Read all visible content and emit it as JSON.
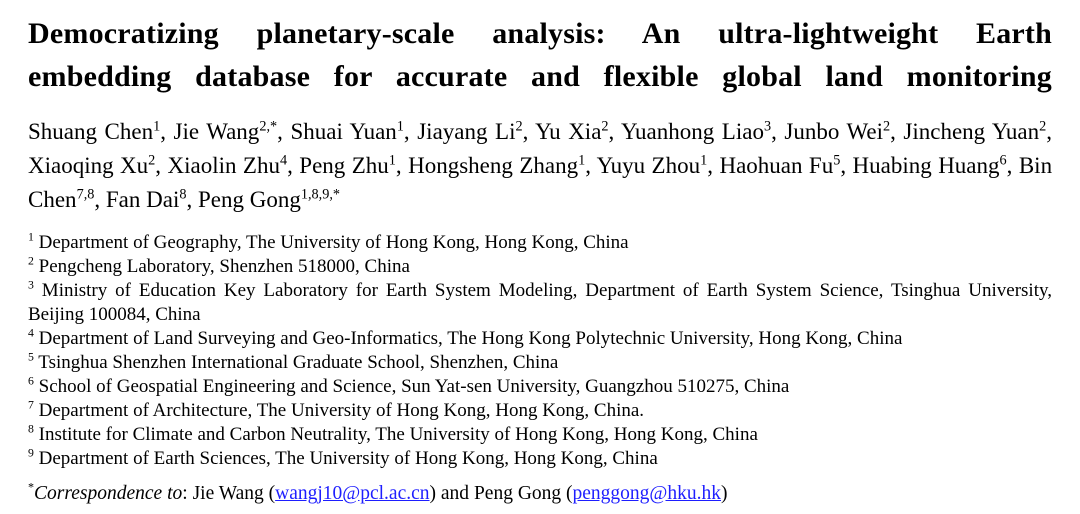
{
  "title": {
    "line1": "Democratizing planetary-scale analysis: An ultra-lightweight Earth",
    "line2": "embedding database for accurate and flexible global land monitoring"
  },
  "authors": [
    {
      "name": "Shuang Chen",
      "sup": "1"
    },
    {
      "name": "Jie Wang",
      "sup": "2,*"
    },
    {
      "name": "Shuai Yuan",
      "sup": "1"
    },
    {
      "name": "Jiayang Li",
      "sup": "2"
    },
    {
      "name": "Yu Xia",
      "sup": "2"
    },
    {
      "name": "Yuanhong Liao",
      "sup": "3"
    },
    {
      "name": "Junbo Wei",
      "sup": "2"
    },
    {
      "name": "Jincheng Yuan",
      "sup": "2"
    },
    {
      "name": "Xiaoqing Xu",
      "sup": "2"
    },
    {
      "name": "Xiaolin Zhu",
      "sup": "4"
    },
    {
      "name": "Peng Zhu",
      "sup": "1"
    },
    {
      "name": "Hongsheng Zhang",
      "sup": "1"
    },
    {
      "name": "Yuyu Zhou",
      "sup": "1"
    },
    {
      "name": "Haohuan Fu",
      "sup": "5"
    },
    {
      "name": "Huabing Huang",
      "sup": "6"
    },
    {
      "name": "Bin Chen",
      "sup": "7,8"
    },
    {
      "name": "Fan Dai",
      "sup": "8"
    },
    {
      "name": "Peng Gong",
      "sup": "1,8,9,*"
    }
  ],
  "affiliations": [
    {
      "sup": "1",
      "text": "Department of Geography, The University of Hong Kong, Hong Kong, China"
    },
    {
      "sup": "2",
      "text": "Pengcheng Laboratory, Shenzhen 518000, China"
    },
    {
      "sup": "3",
      "text": "Ministry of Education Key Laboratory for Earth System Modeling, Department of Earth System Science, Tsinghua University, Beijing 100084, China"
    },
    {
      "sup": "4",
      "text": "Department of Land Surveying and Geo-Informatics, The Hong Kong Polytechnic University, Hong Kong, China"
    },
    {
      "sup": "5",
      "text": "Tsinghua Shenzhen International Graduate School, Shenzhen, China"
    },
    {
      "sup": "6",
      "text": "School of Geospatial Engineering and Science, Sun Yat-sen University, Guangzhou 510275, China"
    },
    {
      "sup": "7",
      "text": "Department of Architecture, The University of Hong Kong, Hong Kong, China."
    },
    {
      "sup": "8",
      "text": "Institute for Climate and Carbon Neutrality, The University of Hong Kong, Hong Kong, China"
    },
    {
      "sup": "9",
      "text": "Department of Earth Sciences, The University of Hong Kong, Hong Kong, China"
    }
  ],
  "correspondence": {
    "marker": "*",
    "label": "Correspondence to",
    "colon": ": ",
    "joiner": " and ",
    "contacts": [
      {
        "name": "Jie Wang",
        "email": "wangj10@pcl.ac.cn"
      },
      {
        "name": "Peng Gong",
        "email": "penggong@hku.hk"
      }
    ]
  },
  "colors": {
    "text": "#000000",
    "link": "#1e1eff",
    "background": "#ffffff"
  }
}
